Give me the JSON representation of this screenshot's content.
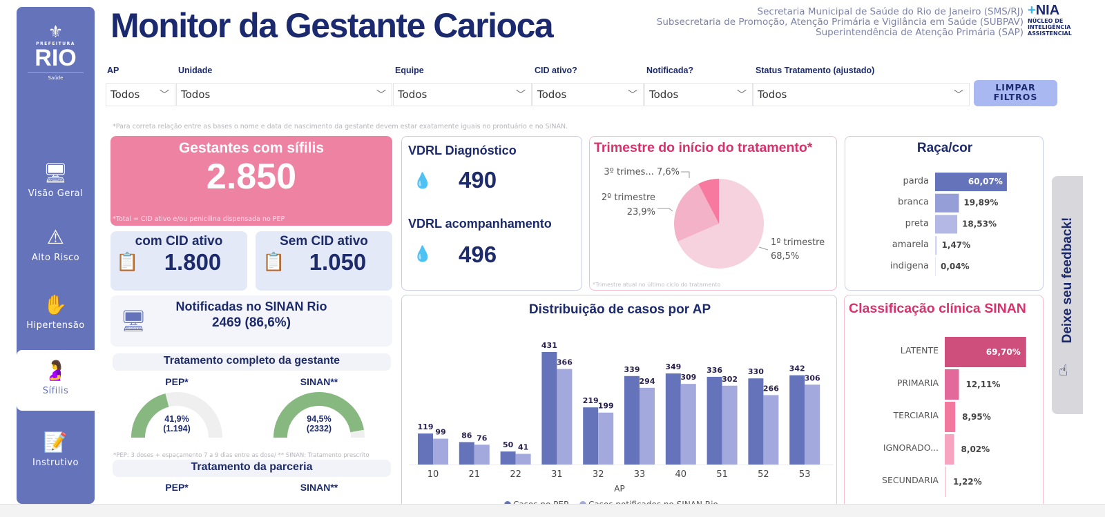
{
  "sidebar": {
    "logo_small": "PREFEITURA",
    "logo_big": "RIO",
    "logo_sub": "Saúde",
    "items": [
      {
        "label": "Visão Geral",
        "icon": "dashboard-monitor-icon"
      },
      {
        "label": "Alto Risco",
        "icon": "warning-search-icon"
      },
      {
        "label": "Hipertensão",
        "icon": "blood-pressure-icon"
      },
      {
        "label": "Sífilis",
        "icon": "pregnant-woman-icon",
        "active": true
      },
      {
        "label": "Instrutivo",
        "icon": "checklist-icon"
      }
    ]
  },
  "header": {
    "title": "Monitor da Gestante Carioca",
    "org_lines": [
      "Secretaria Municipal de Saúde do Rio de Janeiro (SMS/RJ)",
      "Subsecretaria de Promoção, Atenção Primária e Vigilância em Saúde (SUBPAV)",
      "Superintendência de Atenção Primária (SAP)"
    ],
    "nia_logo": "NIA",
    "nia_text": "NÚCLEO DE INTELIGÊNCIA ASSISTENCIAL"
  },
  "filters": [
    {
      "label": "AP",
      "value": "Todos"
    },
    {
      "label": "Unidade",
      "value": "Todos"
    },
    {
      "label": "Equipe",
      "value": "Todos"
    },
    {
      "label": "CID ativo?",
      "value": "Todos"
    },
    {
      "label": "Notificada?",
      "value": "Todos"
    },
    {
      "label": "Status Tratamento (ajustado)",
      "value": "Todos"
    }
  ],
  "clear_button": "LIMPAR FILTROS",
  "top_note": "*Para correta relação entre as bases o nome e data de nascimento da gestante devem estar exatamente iguais no prontuário e no SINAN.",
  "total": {
    "title": "Gestantes  com sífilis",
    "value": "2.850",
    "note": "*Total = CID ativo  e/ou penicilina dispensada no PEP"
  },
  "cid": {
    "com_label": "com CID ativo",
    "com_value": "1.800",
    "sem_label": "Sem CID ativo",
    "sem_value": "1.050"
  },
  "sinan": {
    "label": "Notificadas no SINAN Rio",
    "value": "2469 (86,6%)"
  },
  "tratamento": {
    "title": "Tratamento completo da gestante",
    "pep_label": "PEP*",
    "pep_pct": 41.9,
    "pep_text": "41,9%",
    "pep_count": "(1.194)",
    "sinan_label": "SINAN**",
    "sinan_pct": 94.5,
    "sinan_text": "94,5%",
    "sinan_count": "(2332)",
    "note": "*PEP: 3 doses + espaçamento 7 a 9 dias entre as dose/ ** SINAN: Tratamento prescrito"
  },
  "parceria": {
    "title": "Tratamento da parceria",
    "pep_label": "PEP*",
    "sinan_label": "SINAN**"
  },
  "vdrl": {
    "diag_label": "VDRL Diagnóstico",
    "diag_value": "490",
    "acomp_label": "VDRL acompanhamento",
    "acomp_value": "496"
  },
  "feedback": {
    "label": "Deixe seu feedback!"
  },
  "colors": {
    "sidebar": "#6574ba",
    "navy": "#1b2a6e",
    "pink": "#ee82a3",
    "pink_title": "#d6336c",
    "bar_pep": "#6574ba",
    "bar_sinan": "#a3a9dc",
    "gauge": "#86b87f"
  },
  "chart_data": [
    {
      "type": "pie",
      "title": "Trimestre do início do tratamento*",
      "note": "*Trimestre atual no último ciclo do tratamento",
      "slices": [
        {
          "label": "1º trimestre",
          "value": 68.5,
          "text": "68,5%",
          "color": "#f5d2dd"
        },
        {
          "label": "2º trimestre",
          "value": 23.9,
          "text": "23,9%",
          "color": "#f3b2c7"
        },
        {
          "label": "3º trimes...",
          "value": 7.6,
          "text": "7,6%",
          "color": "#f7799f"
        }
      ]
    },
    {
      "type": "bar",
      "orientation": "horizontal",
      "title": "Raça/cor",
      "categories": [
        "parda",
        "branca",
        "preta",
        "amarela",
        "indigena"
      ],
      "values": [
        60.07,
        19.89,
        18.53,
        1.47,
        0.04
      ],
      "labels": [
        "60,07%",
        "19,89%",
        "18,53%",
        "1,47%",
        "0,04%"
      ],
      "colors": [
        "#6574ba",
        "#959ed6",
        "#b3b9e4",
        "#d3d6f0",
        "#e4e6f5"
      ]
    },
    {
      "type": "bar",
      "title": "Distribuição de casos por AP",
      "xlabel": "AP",
      "categories": [
        "10",
        "21",
        "22",
        "31",
        "32",
        "33",
        "40",
        "51",
        "52",
        "53"
      ],
      "series": [
        {
          "name": "Casos no PEP",
          "values": [
            119,
            86,
            50,
            431,
            219,
            339,
            349,
            336,
            330,
            342
          ]
        },
        {
          "name": "Casos notificados no SINAN Rio",
          "values": [
            99,
            76,
            41,
            366,
            199,
            294,
            309,
            302,
            266,
            306
          ]
        }
      ],
      "legend": "bottom"
    },
    {
      "type": "bar",
      "orientation": "horizontal",
      "title": "Classificação clínica SINAN",
      "categories": [
        "LATENTE",
        "PRIMARIA",
        "TERCIARIA",
        "IGNORADO...",
        "SECUNDARIA"
      ],
      "values": [
        69.7,
        12.11,
        8.95,
        8.02,
        1.22
      ],
      "labels": [
        "69,70%",
        "12,11%",
        "8,95%",
        "8,02%",
        "1,22%"
      ],
      "colors": [
        "#cf4f7c",
        "#e2699a",
        "#f2789f",
        "#f6a4bf",
        "#f8d0dd"
      ]
    }
  ]
}
